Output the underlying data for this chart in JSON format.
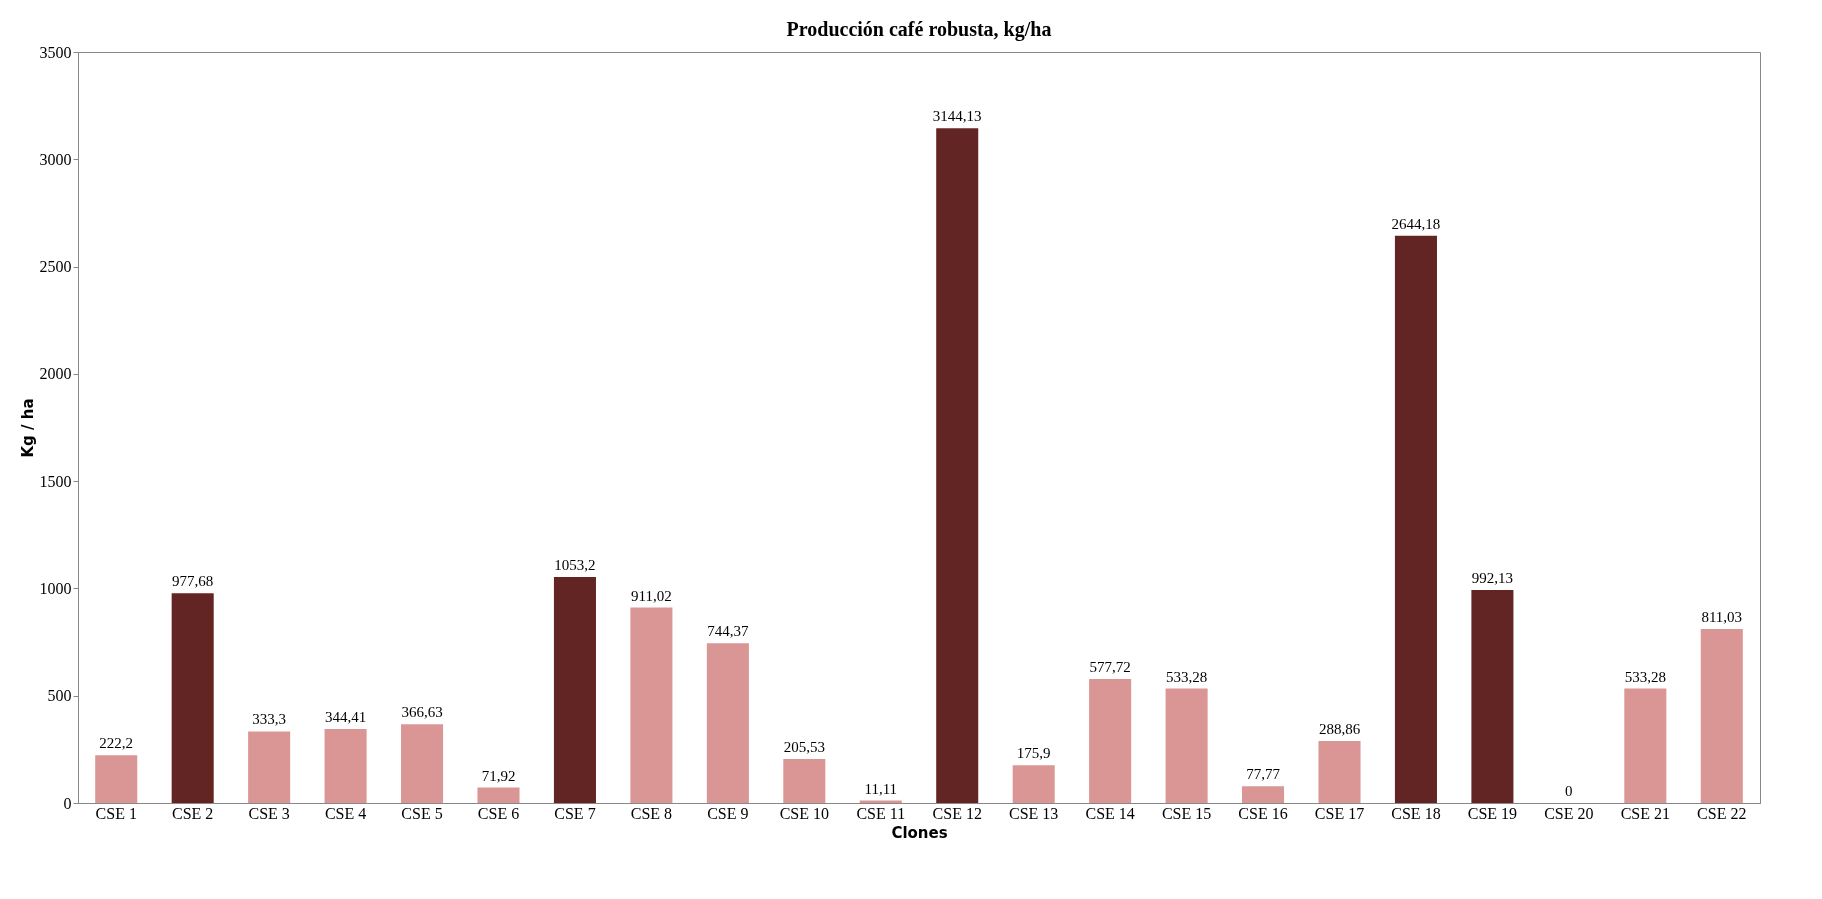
{
  "chart_data": {
    "type": "bar",
    "title": "Producción café robusta, kg/ha",
    "xlabel": "Clones",
    "ylabel": "Kg / ha",
    "categories": [
      "CSE 1",
      "CSE 2",
      "CSE 3",
      "CSE 4",
      "CSE 5",
      "CSE 6",
      "CSE 7",
      "CSE 8",
      "CSE 9",
      "CSE 10",
      "CSE 11",
      "CSE 12",
      "CSE 13",
      "CSE 14",
      "CSE 15",
      "CSE 16",
      "CSE 17",
      "CSE 18",
      "CSE 19",
      "CSE 20",
      "CSE 21",
      "CSE 22"
    ],
    "values": [
      222.2,
      977.68,
      333.3,
      344.41,
      366.63,
      71.92,
      1053.2,
      911.02,
      744.37,
      205.53,
      11.11,
      3144.13,
      175.9,
      577.72,
      533.28,
      77.77,
      288.86,
      2644.18,
      992.13,
      0,
      533.28,
      811.03
    ],
    "value_labels": [
      "222,2",
      "977,68",
      "333,3",
      "344,41",
      "366,63",
      "71,92",
      "1053,2",
      "911,02",
      "744,37",
      "205,53",
      "11,11",
      "3144,13",
      "175,9",
      "577,72",
      "533,28",
      "77,77",
      "288,86",
      "2644,18",
      "992,13",
      "0",
      "533,28",
      "811,03"
    ],
    "colors": [
      "#d99694",
      "#632523",
      "#d99694",
      "#d99694",
      "#d99694",
      "#d99694",
      "#632523",
      "#d99694",
      "#d99694",
      "#d99694",
      "#d99694",
      "#632523",
      "#d99694",
      "#d99694",
      "#d99694",
      "#d99694",
      "#d99694",
      "#632523",
      "#632523",
      "#d99694",
      "#d99694",
      "#d99694"
    ],
    "ylim": [
      0,
      3500
    ],
    "yticks": [
      0,
      500,
      1000,
      1500,
      2000,
      2500,
      3000,
      3500
    ],
    "grid": false
  }
}
